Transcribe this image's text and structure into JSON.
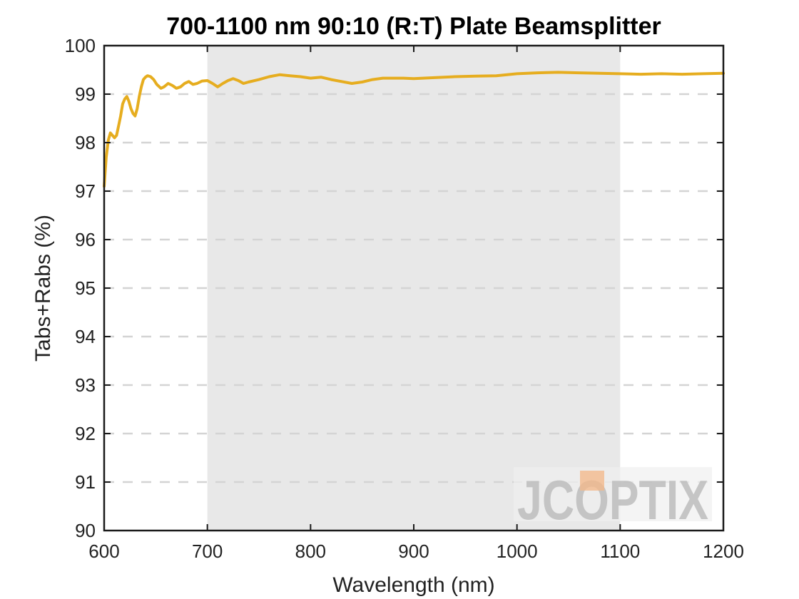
{
  "chart_data": {
    "type": "line",
    "title": "700-1100 nm 90:10 (R:T) Plate Beamsplitter",
    "xlabel": "Wavelength (nm)",
    "ylabel": "Tabs+Rabs (%)",
    "xlim": [
      600,
      1200
    ],
    "ylim": [
      90,
      100
    ],
    "xticks": [
      600,
      700,
      800,
      900,
      1000,
      1100,
      1200
    ],
    "yticks": [
      90,
      91,
      92,
      93,
      94,
      95,
      96,
      97,
      98,
      99,
      100
    ],
    "grid": "horizontal-dashed",
    "highlight_band": {
      "x_start": 700,
      "x_end": 1100,
      "color": "#e8e8e8"
    },
    "series": [
      {
        "color": "#e6ad1f",
        "x": [
          600,
          602,
          604,
          606,
          608,
          610,
          612,
          614,
          616,
          618,
          620,
          622,
          624,
          626,
          628,
          630,
          632,
          634,
          636,
          638,
          640,
          642,
          645,
          648,
          651,
          655,
          658,
          662,
          666,
          670,
          674,
          678,
          682,
          686,
          690,
          695,
          700,
          705,
          710,
          715,
          720,
          725,
          730,
          735,
          740,
          750,
          760,
          770,
          780,
          790,
          800,
          810,
          820,
          830,
          840,
          850,
          860,
          870,
          880,
          890,
          900,
          920,
          940,
          960,
          980,
          1000,
          1020,
          1040,
          1060,
          1080,
          1100,
          1120,
          1140,
          1160,
          1180,
          1200
        ],
        "y": [
          97.1,
          97.7,
          98.05,
          98.2,
          98.15,
          98.1,
          98.15,
          98.35,
          98.55,
          98.8,
          98.9,
          98.95,
          98.85,
          98.7,
          98.6,
          98.55,
          98.7,
          98.95,
          99.15,
          99.3,
          99.35,
          99.38,
          99.36,
          99.3,
          99.2,
          99.12,
          99.15,
          99.22,
          99.18,
          99.12,
          99.15,
          99.22,
          99.26,
          99.2,
          99.22,
          99.27,
          99.28,
          99.22,
          99.15,
          99.22,
          99.28,
          99.32,
          99.28,
          99.22,
          99.25,
          99.3,
          99.36,
          99.4,
          99.38,
          99.36,
          99.33,
          99.35,
          99.3,
          99.26,
          99.22,
          99.25,
          99.3,
          99.33,
          99.33,
          99.33,
          99.32,
          99.34,
          99.36,
          99.37,
          99.38,
          99.42,
          99.44,
          99.45,
          99.44,
          99.43,
          99.42,
          99.41,
          99.42,
          99.41,
          99.42,
          99.43
        ]
      }
    ]
  },
  "logo": {
    "text": "JCOPTIX",
    "accent_color": "#f2b98c"
  }
}
